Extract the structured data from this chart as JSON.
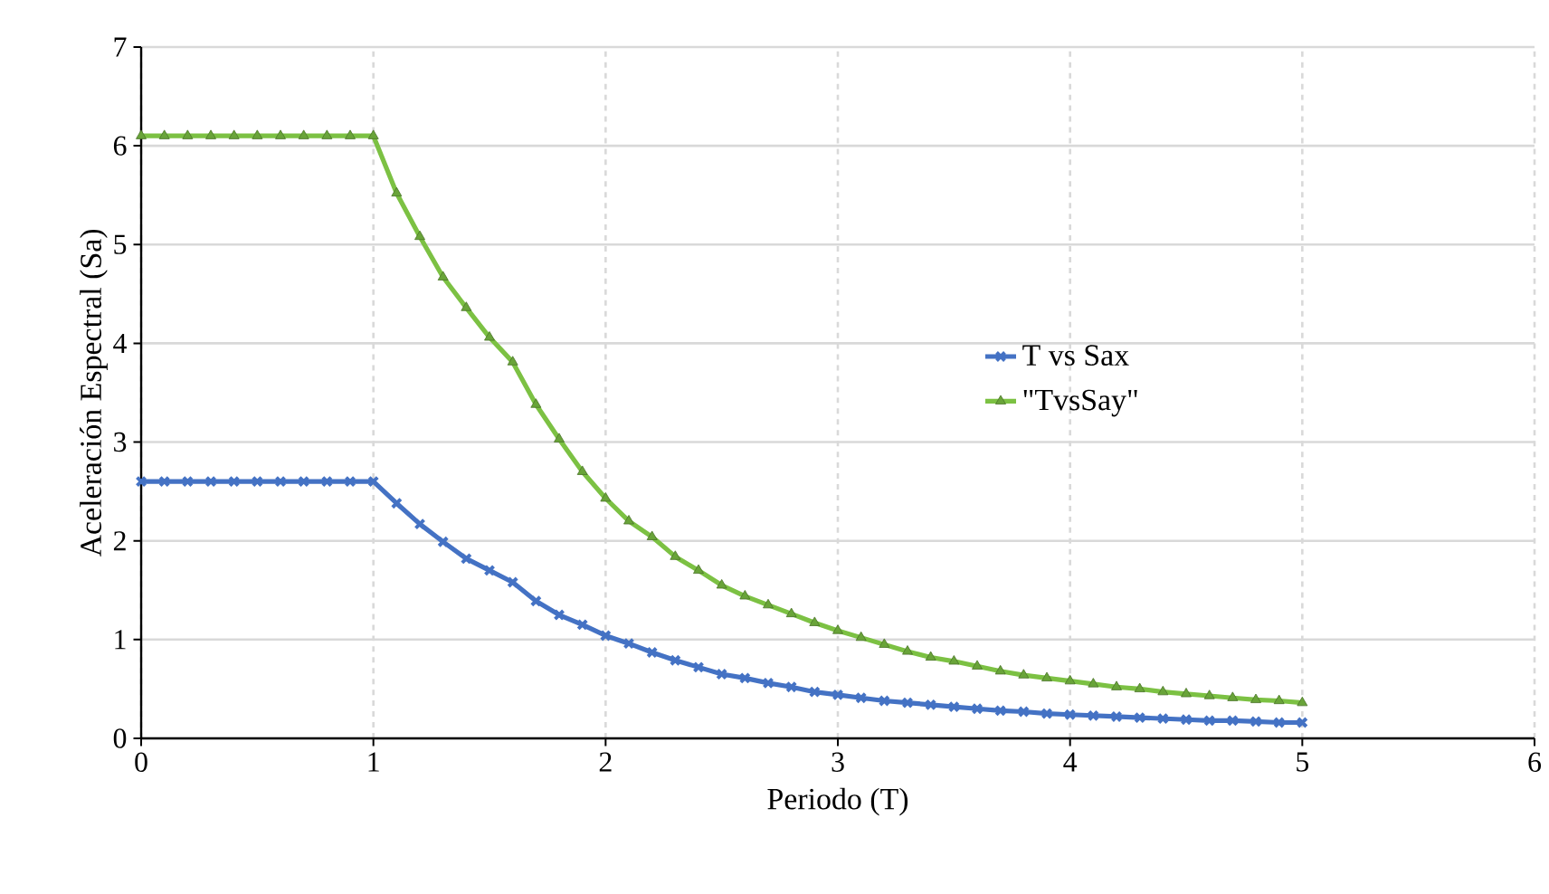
{
  "chart_data": {
    "type": "line",
    "xlabel": "Periodo (T)",
    "ylabel": "Aceleración Espectral (Sa)",
    "x": [
      0,
      0.1,
      0.2,
      0.3,
      0.4,
      0.5,
      0.6,
      0.7,
      0.8,
      0.9,
      1.0,
      1.1,
      1.2,
      1.3,
      1.4,
      1.5,
      1.6,
      1.7,
      1.8,
      1.9,
      2.0,
      2.1,
      2.2,
      2.3,
      2.4,
      2.5,
      2.6,
      2.7,
      2.8,
      2.9,
      3.0,
      3.1,
      3.2,
      3.3,
      3.4,
      3.5,
      3.6,
      3.7,
      3.8,
      3.9,
      4.0,
      4.1,
      4.2,
      4.3,
      4.4,
      4.5,
      4.6,
      4.7,
      4.8,
      4.9,
      5.0
    ],
    "series": [
      {
        "name": "T vs Sax",
        "color": "#4472c4",
        "marker": "cross",
        "values": [
          2.6,
          2.6,
          2.6,
          2.6,
          2.6,
          2.6,
          2.6,
          2.6,
          2.6,
          2.6,
          2.6,
          2.38,
          2.17,
          1.99,
          1.82,
          1.7,
          1.58,
          1.39,
          1.25,
          1.15,
          1.04,
          0.96,
          0.87,
          0.79,
          0.72,
          0.65,
          0.61,
          0.56,
          0.52,
          0.47,
          0.44,
          0.41,
          0.38,
          0.36,
          0.34,
          0.32,
          0.3,
          0.28,
          0.27,
          0.25,
          0.24,
          0.23,
          0.22,
          0.21,
          0.2,
          0.19,
          0.18,
          0.18,
          0.17,
          0.16,
          0.16
        ]
      },
      {
        "name": "\"TvsSay\"",
        "color": "#7cc143",
        "marker": "triangle",
        "values": [
          6.1,
          6.1,
          6.1,
          6.1,
          6.1,
          6.1,
          6.1,
          6.1,
          6.1,
          6.1,
          6.1,
          5.52,
          5.08,
          4.67,
          4.36,
          4.06,
          3.81,
          3.38,
          3.03,
          2.7,
          2.43,
          2.2,
          2.04,
          1.84,
          1.7,
          1.55,
          1.44,
          1.35,
          1.26,
          1.17,
          1.09,
          1.02,
          0.95,
          0.88,
          0.82,
          0.78,
          0.73,
          0.68,
          0.64,
          0.61,
          0.58,
          0.55,
          0.52,
          0.5,
          0.47,
          0.45,
          0.43,
          0.41,
          0.39,
          0.38,
          0.36
        ]
      }
    ],
    "xlim": [
      0,
      6
    ],
    "xticks": [
      0,
      1,
      2,
      3,
      4,
      5,
      6
    ],
    "ylim": [
      0,
      7
    ],
    "yticks": [
      0,
      1,
      2,
      3,
      4,
      5,
      6,
      7
    ],
    "grid": true,
    "legend": "right",
    "line_style": "solid"
  }
}
